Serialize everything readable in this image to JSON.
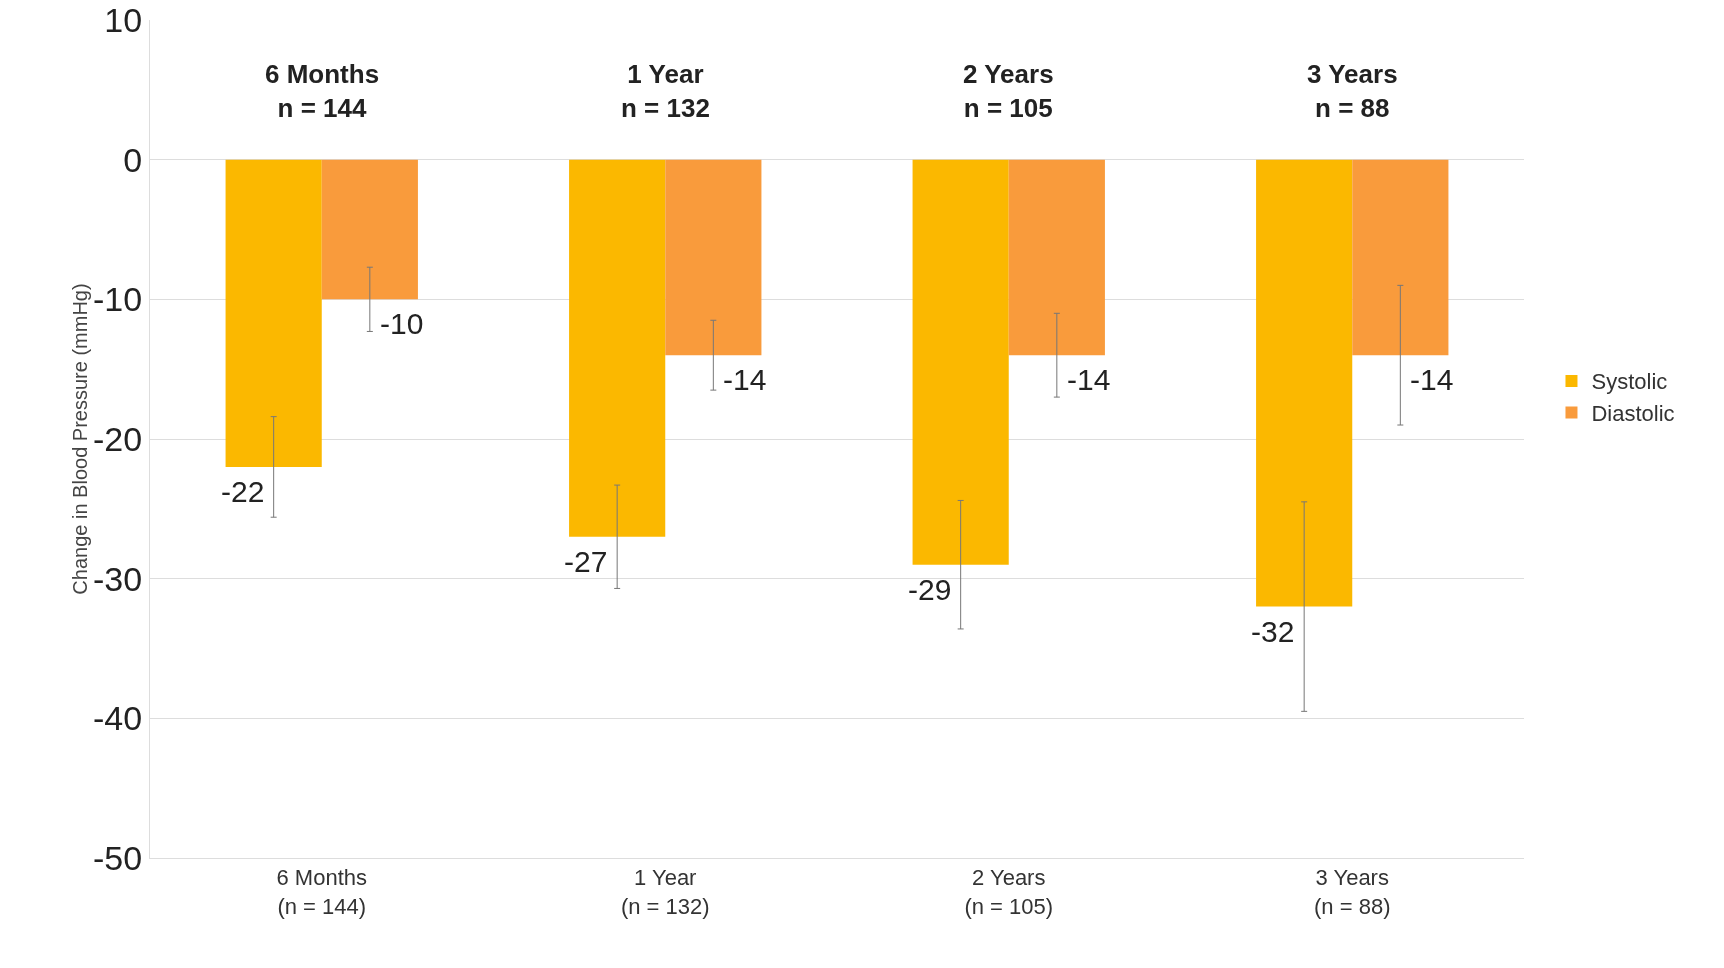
{
  "chart_data": {
    "type": "bar",
    "ylabel": "Change in Blood Pressure (mmHg)",
    "categories": [
      "6 Months\n(n = 144)",
      "1 Year\n(n = 132)",
      "2 Years\n(n = 105)",
      "3 Years\n(n = 88)"
    ],
    "series": [
      {
        "name": "Systolic",
        "color": "#fbb800",
        "values": [
          -22,
          -27,
          -29,
          -32
        ],
        "errors": [
          3.6,
          3.7,
          4.6,
          7.5
        ]
      },
      {
        "name": "Diastolic",
        "color": "#f99b3c",
        "values": [
          -10,
          -14,
          -14,
          -14
        ],
        "errors": [
          2.3,
          2.5,
          3,
          5
        ]
      }
    ],
    "annotations": [
      "6 Months\nn = 144",
      "1 Year\nn = 132",
      "2 Years\nn = 105",
      "3 Years\nn = 88"
    ],
    "data_labels": true,
    "ylim": [
      -50,
      10
    ],
    "yticks": [
      -50,
      -40,
      -30,
      -20,
      -10,
      0,
      10
    ],
    "grid": "y",
    "legend": "right"
  }
}
